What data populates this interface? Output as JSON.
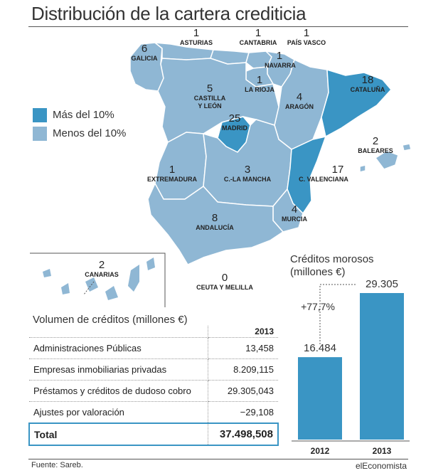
{
  "title": "Distribución de la cartera crediticia",
  "colors": {
    "high": "#3a95c4",
    "low": "#8fb7d4",
    "border": "#ffffff",
    "accent": "#3a95c4"
  },
  "legend": [
    {
      "label": "Más del 10%",
      "color": "#3a95c4"
    },
    {
      "label": "Menos del 10%",
      "color": "#8fb7d4"
    }
  ],
  "regions": [
    {
      "name": "GALICIA",
      "value": "6"
    },
    {
      "name": "ASTURIAS",
      "value": "1"
    },
    {
      "name": "CANTABRIA",
      "value": "1"
    },
    {
      "name": "PAÍS VASCO",
      "value": "1"
    },
    {
      "name": "NAVARRA",
      "value": "1"
    },
    {
      "name": "LA RIOJA",
      "value": "1"
    },
    {
      "name": "ARAGÓN",
      "value": "4"
    },
    {
      "name": "CATALUÑA",
      "value": "18"
    },
    {
      "name": "CASTILLA\nY LEÓN",
      "value": "5"
    },
    {
      "name": "MADRID",
      "value": "25"
    },
    {
      "name": "BALEARES",
      "value": "2"
    },
    {
      "name": "EXTREMADURA",
      "value": "1"
    },
    {
      "name": "C.-LA MANCHA",
      "value": "3"
    },
    {
      "name": "C. VALENCIANA",
      "value": "17"
    },
    {
      "name": "MURCIA",
      "value": "4"
    },
    {
      "name": "ANDALUCÍA",
      "value": "8"
    },
    {
      "name": "CANARIAS",
      "value": "2"
    },
    {
      "name": "CEUTA Y MELILLA",
      "value": "0"
    }
  ],
  "table": {
    "title": "Volumen de créditos  (millones €)",
    "year": "2013",
    "rows": [
      {
        "label": "Administraciones Públicas",
        "value": "13,458"
      },
      {
        "label": "Empresas inmobiliarias privadas",
        "value": "8.209,115"
      },
      {
        "label": "Préstamos y créditos de dudoso cobro",
        "value": "29.305,043"
      },
      {
        "label": "Ajustes por valoración",
        "value": "−29,108"
      }
    ],
    "total": {
      "label": "Total",
      "value": "37.498,508"
    }
  },
  "chart_data": {
    "type": "bar",
    "title": "Créditos morosos\n(millones €)",
    "categories": [
      "2012",
      "2013"
    ],
    "values": [
      16484,
      29305
    ],
    "value_labels": [
      "16.484",
      "29.305"
    ],
    "annotation": "+77,7%",
    "ylim": [
      0,
      29305
    ],
    "color": "#3a95c4"
  },
  "footer": {
    "source": "Fuente: Sareb.",
    "brand": "elEconomista"
  }
}
